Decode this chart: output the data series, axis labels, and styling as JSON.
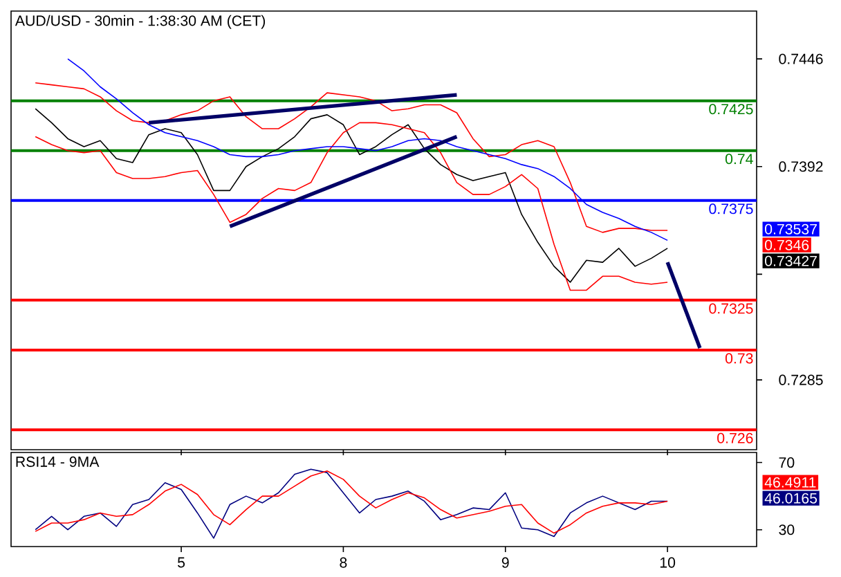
{
  "chart_data": [
    {
      "type": "line",
      "title": "AUD/USD - 30min - 1:38:30 AM (CET)",
      "categories": [
        null,
        null,
        null,
        null,
        null,
        null,
        null,
        null,
        null,
        null,
        "5",
        null,
        null,
        null,
        null,
        null,
        null,
        null,
        null,
        null,
        "8",
        null,
        null,
        null,
        null,
        null,
        null,
        null,
        null,
        null,
        "9",
        null,
        null,
        null,
        null,
        null,
        null,
        null,
        null,
        null,
        "10",
        null,
        null,
        null,
        null,
        null
      ],
      "ylim": [
        0.725,
        0.747
      ],
      "yticks": [
        0.7446,
        0.7392,
        {
          "value": 0.7338,
          "label": null
        },
        0.7285
      ],
      "tick_labels": "y",
      "series": [
        {
          "color": "#000000",
          "values": [
            null,
            0.7421,
            0.7414,
            0.7406,
            0.7402,
            0.7405,
            0.7396,
            0.7394,
            0.7408,
            0.7411,
            0.7409,
            0.7398,
            0.738,
            0.738,
            0.7392,
            0.7397,
            0.7401,
            0.7407,
            0.7416,
            0.7418,
            0.7413,
            0.7398,
            0.7402,
            0.7408,
            0.7413,
            0.7401,
            0.7393,
            0.7388,
            0.7385,
            0.7387,
            0.7389,
            0.7368,
            0.7354,
            0.7342,
            0.7334,
            0.7345,
            0.7344,
            0.7351,
            0.7342,
            0.7346,
            0.7351,
            null,
            null,
            null,
            null,
            null
          ]
        },
        {
          "color": "#ff0000",
          "values": [
            null,
            0.7434,
            0.7433,
            0.7432,
            0.7431,
            0.7427,
            0.742,
            0.7415,
            0.7414,
            0.7415,
            0.7418,
            0.742,
            0.7425,
            0.7427,
            0.7417,
            0.7411,
            0.7411,
            0.7416,
            0.7422,
            0.7429,
            0.7428,
            0.7427,
            0.7425,
            0.742,
            0.7421,
            0.7423,
            0.7423,
            0.7419,
            0.7406,
            0.7397,
            0.7398,
            0.7403,
            0.7405,
            0.7402,
            0.7384,
            0.7362,
            0.7359,
            0.7361,
            0.7361,
            0.736,
            0.736,
            null,
            null,
            null,
            null,
            null
          ]
        },
        {
          "color": "#ff0000",
          "values": [
            null,
            0.7407,
            0.7403,
            0.74,
            0.7399,
            0.74,
            0.7389,
            0.7386,
            0.7386,
            0.7387,
            0.7389,
            0.739,
            0.7378,
            0.7364,
            0.7368,
            0.7376,
            0.7381,
            0.738,
            0.7384,
            0.7399,
            0.7409,
            0.7414,
            0.7414,
            0.7413,
            0.7411,
            0.7409,
            0.7399,
            0.7384,
            0.7378,
            0.7378,
            0.7382,
            0.7388,
            0.7381,
            0.7353,
            0.733,
            0.733,
            0.7337,
            0.7337,
            0.7334,
            0.7333,
            0.7334,
            null,
            null,
            null,
            null,
            null
          ]
        },
        {
          "color": "#0000ff",
          "values": [
            null,
            null,
            null,
            0.7446,
            0.744,
            0.7432,
            0.7426,
            0.7419,
            0.7413,
            0.7409,
            0.7407,
            0.7405,
            0.7402,
            0.7398,
            0.7397,
            0.7397,
            0.7398,
            0.74,
            0.7401,
            0.7402,
            0.7402,
            0.7401,
            0.74,
            0.7402,
            0.7405,
            0.7406,
            0.7405,
            0.7402,
            0.74,
            0.7398,
            0.7396,
            0.7393,
            0.7391,
            0.7387,
            0.7381,
            0.7373,
            0.7369,
            0.7366,
            0.7362,
            0.7359,
            0.7355,
            null,
            null,
            null,
            null,
            null
          ]
        },
        {
          "color": "#000066",
          "values": [
            null,
            null,
            null,
            null,
            null,
            null,
            null,
            null,
            0.7414,
            null,
            null,
            null,
            null,
            null,
            null,
            null,
            null,
            null,
            null,
            null,
            null,
            null,
            null,
            null,
            null,
            null,
            null,
            0.7428,
            null,
            null,
            null,
            null,
            null,
            null,
            null,
            null,
            null,
            null,
            null,
            null,
            null,
            null,
            null,
            null,
            null,
            null
          ]
        },
        {
          "color": "#000066",
          "values": [
            null,
            null,
            null,
            null,
            null,
            null,
            null,
            null,
            null,
            null,
            null,
            null,
            null,
            0.7362,
            null,
            null,
            null,
            null,
            null,
            null,
            null,
            null,
            null,
            null,
            null,
            null,
            null,
            0.7407,
            null,
            null,
            null,
            null,
            null,
            null,
            null,
            null,
            null,
            null,
            null,
            null,
            null,
            null,
            null,
            null,
            null,
            null
          ]
        },
        {
          "color": "#000066",
          "values": [
            null,
            null,
            null,
            null,
            null,
            null,
            null,
            null,
            null,
            null,
            null,
            null,
            null,
            null,
            null,
            null,
            null,
            null,
            null,
            null,
            null,
            null,
            null,
            null,
            null,
            null,
            null,
            null,
            null,
            null,
            null,
            null,
            null,
            null,
            null,
            null,
            null,
            null,
            null,
            null,
            0.7344,
            null,
            0.7301,
            null,
            null,
            null
          ]
        }
      ],
      "ref_lines": [
        {
          "axis": "y",
          "value": 0.7425,
          "label": "0.7425",
          "color": "#008000"
        },
        {
          "axis": "y",
          "value": 0.74,
          "label": "0.74",
          "color": "#008000"
        },
        {
          "axis": "y",
          "value": 0.7375,
          "label": "0.7375",
          "color": "#0000ff"
        },
        {
          "axis": "y",
          "value": 0.7325,
          "label": "0.7325",
          "color": "#ff0000"
        },
        {
          "axis": "y",
          "value": 0.73,
          "label": "0.73",
          "color": "#ff0000"
        },
        {
          "axis": "y",
          "value": 0.726,
          "label": "0.726",
          "color": "#ff0000"
        }
      ],
      "annotations": [
        "0.73537",
        "0.7346",
        "0.73427"
      ]
    },
    {
      "type": "line",
      "title": "RSI14 - 9MA",
      "categories": [
        null,
        null,
        null,
        null,
        null,
        null,
        null,
        null,
        null,
        null,
        "5",
        null,
        null,
        null,
        null,
        null,
        null,
        null,
        null,
        null,
        "8",
        null,
        null,
        null,
        null,
        null,
        null,
        null,
        null,
        null,
        "9",
        null,
        null,
        null,
        null,
        null,
        null,
        null,
        null,
        null,
        "10",
        null,
        null,
        null,
        null,
        null
      ],
      "ylim": [
        20,
        76
      ],
      "yticks": [
        70,
        30
      ],
      "series": [
        {
          "color": "#000080",
          "values": [
            null,
            30,
            38,
            30,
            38,
            40,
            32,
            45,
            48,
            58,
            54,
            40,
            25,
            45,
            50,
            46,
            52,
            63,
            66,
            64,
            52,
            40,
            48,
            50,
            53,
            47,
            36,
            39,
            43,
            42,
            52,
            31,
            30,
            26,
            40,
            46,
            50,
            46,
            42,
            47,
            47,
            null,
            null,
            null,
            null,
            null
          ]
        },
        {
          "color": "#ff0000",
          "values": [
            null,
            29,
            34,
            34,
            36,
            40,
            38,
            39,
            45,
            53,
            57,
            51,
            39,
            33,
            42,
            50,
            50,
            56,
            62,
            65,
            60,
            50,
            43,
            48,
            52,
            49,
            42,
            37,
            39,
            41,
            44,
            45,
            34,
            28,
            33,
            40,
            44,
            46,
            46,
            45,
            47,
            null,
            null,
            null,
            null,
            null
          ]
        }
      ],
      "annotations": [
        "46.4911",
        "46.0165"
      ]
    }
  ]
}
